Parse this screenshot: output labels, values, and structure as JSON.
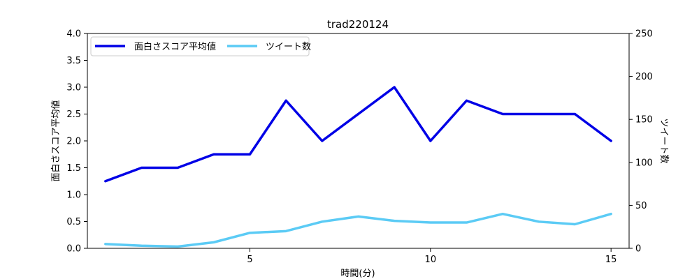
{
  "chart_data": {
    "type": "line",
    "title": "trad220124",
    "xlabel": "時間(分)",
    "ylabel_left": "面白さスコア平均値",
    "ylabel_right": "ツイート数",
    "x": [
      1,
      2,
      3,
      4,
      5,
      6,
      7,
      8,
      9,
      10,
      11,
      12,
      13,
      14,
      15
    ],
    "xlim": [
      0.5,
      15.5
    ],
    "ylim_left": [
      0,
      4.0
    ],
    "ylim_right": [
      0,
      250
    ],
    "x_ticks": [
      5,
      10,
      15
    ],
    "y_ticks_left": [
      "0.0",
      "0.5",
      "1.0",
      "1.5",
      "2.0",
      "2.5",
      "3.0",
      "3.5",
      "4.0"
    ],
    "y_ticks_right": [
      "0",
      "50",
      "100",
      "150",
      "200",
      "250"
    ],
    "series": [
      {
        "name": "面白さスコア平均値",
        "axis": "left",
        "color": "#0000e6",
        "values": [
          1.25,
          1.5,
          1.5,
          1.75,
          1.75,
          2.75,
          2.0,
          2.5,
          3.0,
          2.0,
          2.75,
          2.5,
          2.5,
          2.5,
          2.0
        ]
      },
      {
        "name": "ツイート数",
        "axis": "right",
        "color": "#5bcbf5",
        "values": [
          5,
          3,
          2,
          7,
          18,
          20,
          31,
          37,
          32,
          30,
          30,
          40,
          31,
          28,
          40
        ]
      }
    ],
    "legend": "upper-left",
    "grid": false
  }
}
